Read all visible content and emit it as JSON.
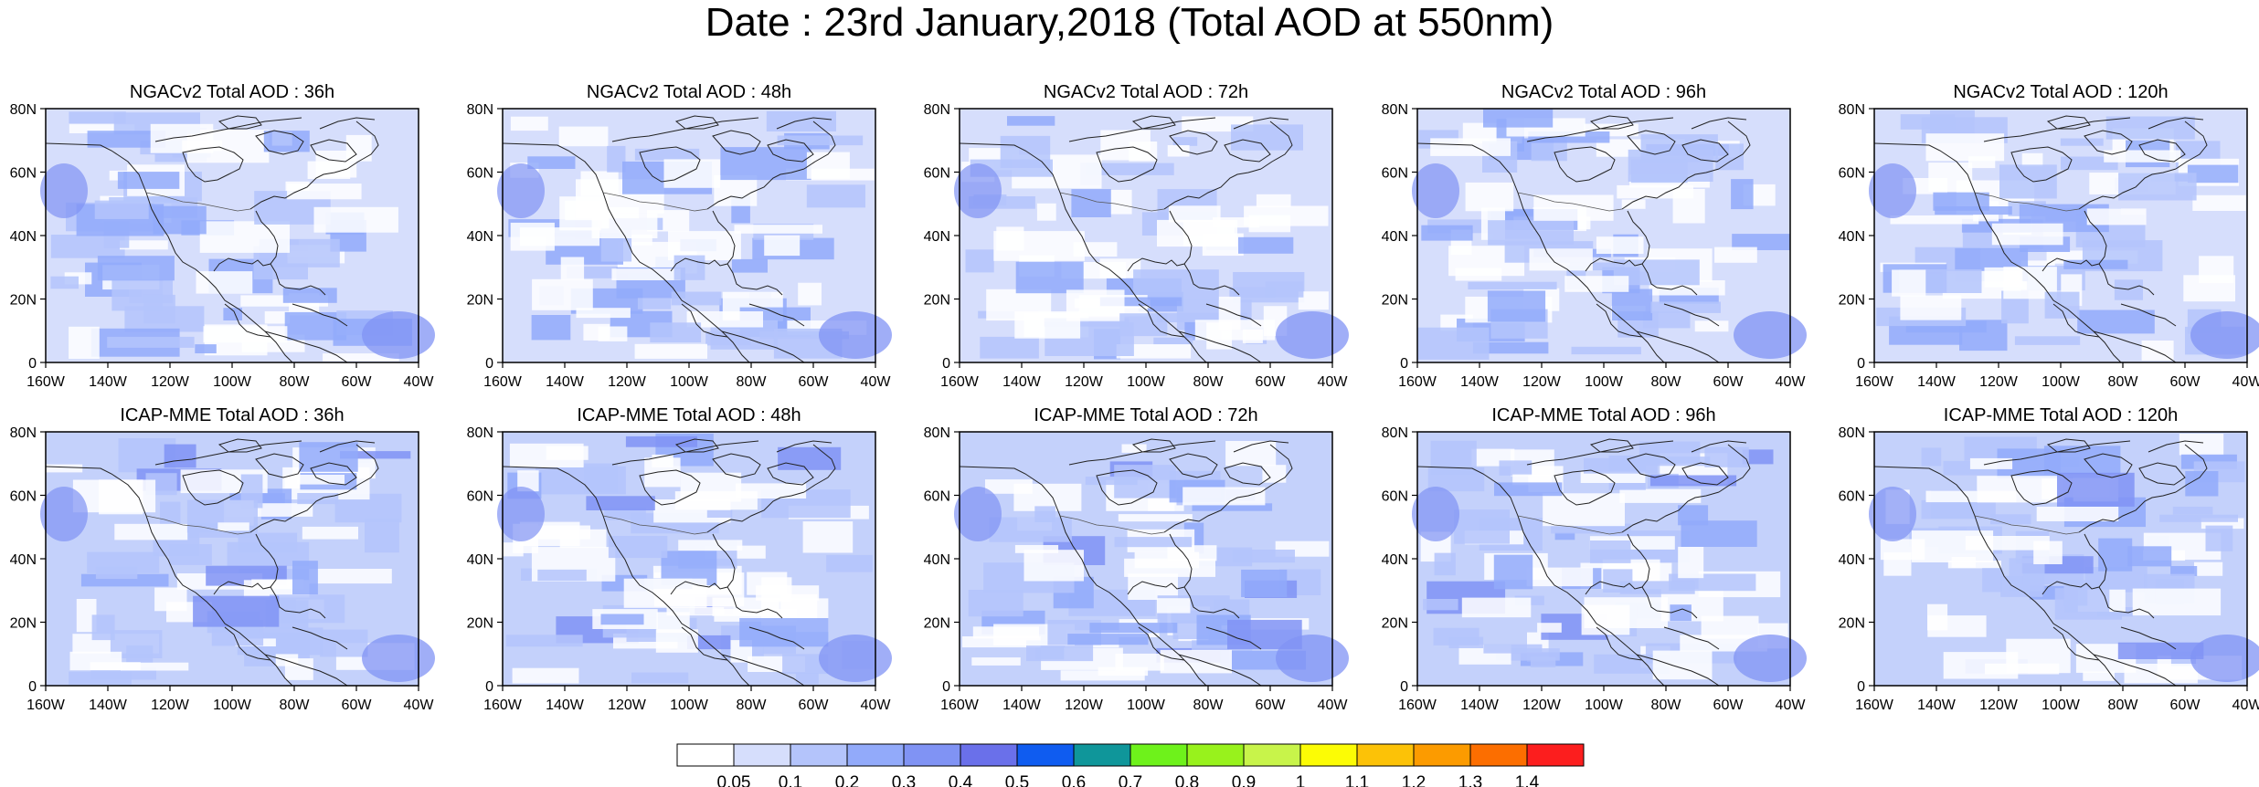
{
  "title": "Date : 23rd January,2018 (Total AOD at 550nm)",
  "rows": [
    {
      "model": "NGACv2",
      "panels": [
        {
          "title": "NGACv2 Total AOD : 36h"
        },
        {
          "title": "NGACv2 Total AOD : 48h"
        },
        {
          "title": "NGACv2 Total AOD : 72h"
        },
        {
          "title": "NGACv2 Total AOD : 96h"
        },
        {
          "title": "NGACv2 Total AOD : 120h"
        }
      ]
    },
    {
      "model": "ICAP-MME",
      "panels": [
        {
          "title": "ICAP-MME Total AOD : 36h"
        },
        {
          "title": "ICAP-MME Total AOD : 48h"
        },
        {
          "title": "ICAP-MME Total AOD : 72h"
        },
        {
          "title": "ICAP-MME Total AOD : 96h"
        },
        {
          "title": "ICAP-MME Total AOD : 120h"
        }
      ]
    }
  ],
  "lon_ticks": [
    "160W",
    "140W",
    "120W",
    "100W",
    "80W",
    "60W",
    "40W"
  ],
  "lat_ticks": [
    "0",
    "20N",
    "40N",
    "60N",
    "80N"
  ],
  "colorbar": {
    "colors": [
      "#ffffff",
      "#d6defc",
      "#b4c4fb",
      "#92aafa",
      "#8093f4",
      "#6a70ea",
      "#0f5cf0",
      "#0f969a",
      "#6ef21b",
      "#98f21c",
      "#c8f44a",
      "#fcfc05",
      "#fcc207",
      "#fc9b00",
      "#fc6e00",
      "#fc1e1e"
    ],
    "labels": [
      "0.05",
      "0.1",
      "0.2",
      "0.3",
      "0.4",
      "0.5",
      "0.6",
      "0.7",
      "0.8",
      "0.9",
      "1",
      "1.1",
      "1.2",
      "1.3",
      "1.4"
    ]
  }
}
